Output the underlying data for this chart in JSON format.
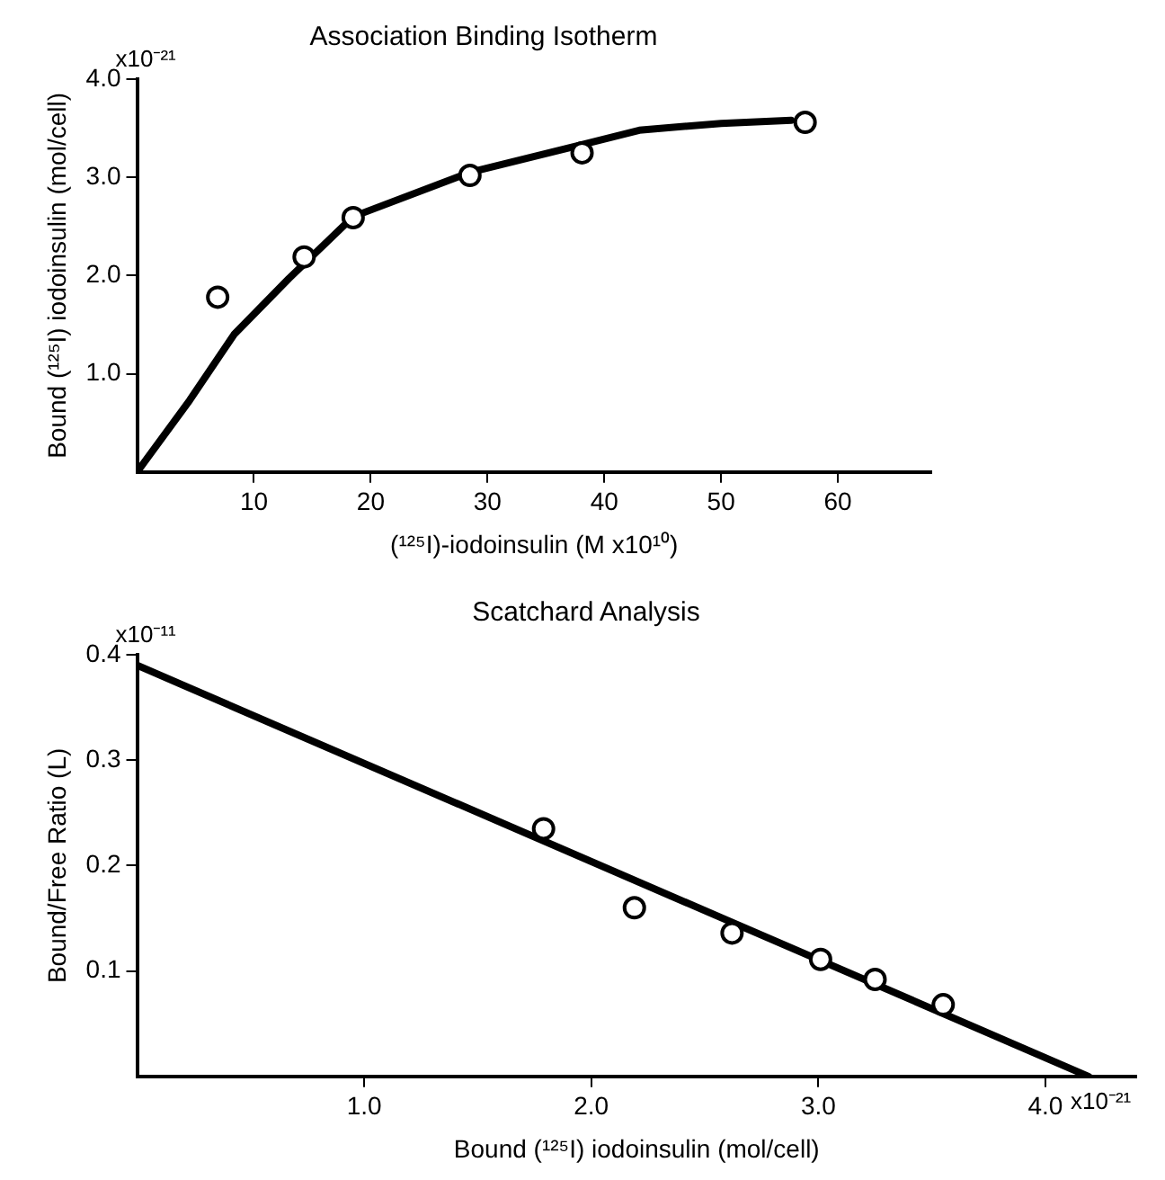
{
  "chart_data": [
    {
      "type": "scatter",
      "title": "Association Binding Isotherm",
      "xlabel": "(¹²⁵I)-iodoinsulin (M x10¹⁰)",
      "ylabel": "Bound (¹²⁵I) iodoinsulin (mol/cell)",
      "annotations": [
        "x10⁻²¹"
      ],
      "xlim": [
        0,
        68
      ],
      "xticks": [
        10,
        20,
        30,
        40,
        50,
        60
      ],
      "ylim": [
        0,
        4
      ],
      "yticks": [
        {
          "value": 1,
          "label": "1.0"
        },
        {
          "value": 2,
          "label": "2.0"
        },
        {
          "value": 3,
          "label": "3.0"
        },
        {
          "value": 4,
          "label": "4.0"
        }
      ],
      "grid": false,
      "legend": false,
      "marker": "circle",
      "series": [
        {
          "type": "line",
          "color": "#000000",
          "marker": "none",
          "x": [
            0,
            4.5,
            8.3,
            13,
            18.5,
            28.5,
            38,
            43,
            50,
            56
          ],
          "values": [
            0,
            0.73,
            1.4,
            1.97,
            2.6,
            3.05,
            3.33,
            3.48,
            3.55,
            3.58
          ]
        },
        {
          "color": "#000000",
          "x": [
            6.9,
            14.3,
            18.5,
            28.5,
            38.1,
            57.2
          ],
          "values": [
            1.78,
            2.19,
            2.59,
            3.02,
            3.25,
            3.56
          ]
        }
      ]
    },
    {
      "type": "scatter",
      "title": "Scatchard Analysis",
      "xlabel": "Bound (¹²⁵I) iodoinsulin (mol/cell)",
      "ylabel": "Bound/Free Ratio (L)",
      "annotations": [
        "x10⁻¹¹",
        "x10⁻²¹"
      ],
      "xlim": [
        0,
        4.4
      ],
      "xticks": [
        {
          "value": 1,
          "label": "1.0"
        },
        {
          "value": 2,
          "label": "2.0"
        },
        {
          "value": 3,
          "label": "3.0"
        },
        {
          "value": 4,
          "label": "4.0"
        }
      ],
      "ylim": [
        0,
        0.4
      ],
      "yticks": [
        0.1,
        0.2,
        0.3,
        0.4
      ],
      "grid": false,
      "legend": false,
      "marker": "circle",
      "series": [
        {
          "type": "line",
          "color": "#000000",
          "marker": "none",
          "x": [
            0,
            4.19
          ],
          "values": [
            0.39,
            0
          ]
        },
        {
          "color": "#000000",
          "x": [
            1.79,
            2.19,
            2.62,
            3.01,
            3.25,
            3.55
          ],
          "values": [
            0.235,
            0.16,
            0.136,
            0.111,
            0.092,
            0.068
          ]
        }
      ]
    }
  ]
}
